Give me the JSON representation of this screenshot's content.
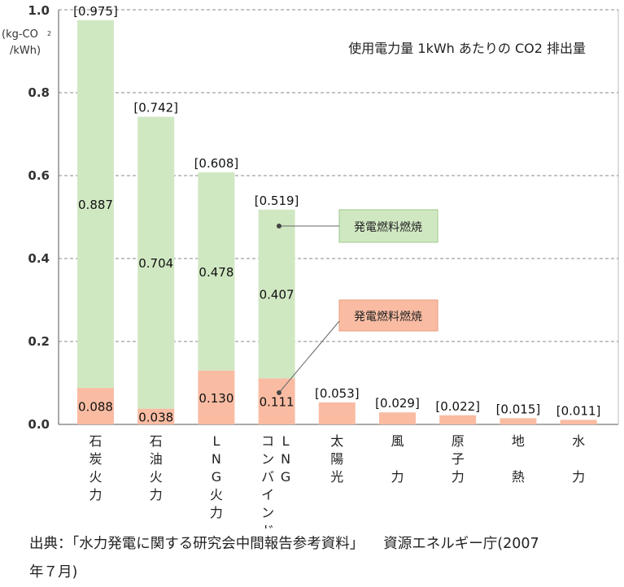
{
  "chart_data": {
    "type": "bar",
    "stacked": true,
    "title": "使用電力量 1kWh あたりの CO2 排出量",
    "ylabel": [
      "(kg-CO",
      "2",
      "/kWh)"
    ],
    "ylim": [
      0,
      1.0
    ],
    "yticks": [
      "0.0",
      "0.2",
      "0.4",
      "0.6",
      "0.8",
      "1.0"
    ],
    "categories": [
      [
        "石",
        "炭",
        "火",
        "力"
      ],
      [
        "石",
        "油",
        "火",
        "力"
      ],
      [
        "L",
        "N",
        "G",
        "火",
        "力"
      ],
      [
        [
          "L",
          "N",
          "G"
        ],
        [
          "コ",
          "ン",
          "バ",
          "イ",
          "ン",
          "ド"
        ]
      ],
      [
        "太",
        "陽",
        "光"
      ],
      [
        "風",
        "力"
      ],
      [
        "原",
        "子",
        "力"
      ],
      [
        "地",
        "熱"
      ],
      [
        "水",
        "力"
      ]
    ],
    "category_names": [
      "石炭火力",
      "石油火力",
      "LNG火力",
      "LNGコンバインド",
      "太陽光",
      "風力",
      "原子力",
      "地熱",
      "水力"
    ],
    "totals": [
      "[0.975]",
      "[0.742]",
      "[0.608]",
      "[0.519]",
      "[0.053]",
      "[0.029]",
      "[0.022]",
      "[0.015]",
      "[0.011]"
    ],
    "series": [
      {
        "name": "bottom",
        "color": "#f9bca3",
        "values": [
          0.088,
          0.038,
          0.13,
          0.111,
          0.053,
          0.029,
          0.022,
          0.015,
          0.011
        ],
        "labels": [
          "0.088",
          "0.038",
          "0.130",
          "0.111",
          "",
          "",
          "",
          "",
          ""
        ]
      },
      {
        "name": "top",
        "color": "#d0e8c2",
        "values": [
          0.887,
          0.704,
          0.478,
          0.407,
          0,
          0,
          0,
          0,
          0
        ],
        "labels": [
          "0.887",
          "0.704",
          "0.478",
          "0.407",
          "",
          "",
          "",
          "",
          ""
        ]
      }
    ],
    "legend": [
      {
        "label": "発電燃料燃焼",
        "color": "#d0e8c2",
        "border": "#9cc98a"
      },
      {
        "label": "発電燃料燃焼",
        "color": "#f9bca3",
        "border": "#e89c7e"
      }
    ]
  },
  "source": {
    "line1": "出典：「水力発電に関する研究会中間報告参考資料」",
    "line1b": "資源エネルギー庁(2007",
    "line2": "年７月)"
  }
}
